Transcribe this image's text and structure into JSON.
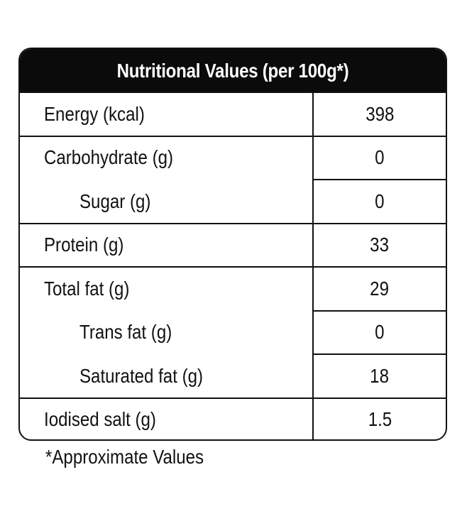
{
  "table": {
    "title": "Nutritional Values (per 100g*)",
    "rows": [
      {
        "label": "Energy (kcal)",
        "value": "398",
        "indent": 0
      },
      {
        "label": "Carbohydrate (g)",
        "value": "0",
        "indent": 0
      },
      {
        "label": "Sugar (g)",
        "value": "0",
        "indent": 1
      },
      {
        "label": "Protein (g)",
        "value": "33",
        "indent": 0
      },
      {
        "label": "Total fat (g)",
        "value": "29",
        "indent": 0
      },
      {
        "label": "Trans fat (g)",
        "value": "0",
        "indent": 1
      },
      {
        "label": "Saturated fat (g)",
        "value": "18",
        "indent": 1
      },
      {
        "label": "Iodised salt (g)",
        "value": "1.5",
        "indent": 0
      }
    ]
  },
  "footnote": "*Approximate Values",
  "colors": {
    "header_background": "#0b0b0b",
    "header_text": "#ffffff",
    "border": "#111111",
    "text": "#111111"
  }
}
